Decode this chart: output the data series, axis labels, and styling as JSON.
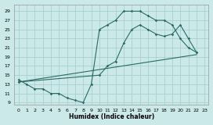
{
  "xlabel": "Humidex (Indice chaleur)",
  "bg_color": "#cce9ea",
  "grid_color": "#aacfcf",
  "line_color": "#2a6b65",
  "xlim": [
    -0.5,
    23.5
  ],
  "ylim": [
    8.5,
    30.5
  ],
  "xticks": [
    0,
    1,
    2,
    3,
    4,
    5,
    6,
    7,
    8,
    9,
    10,
    11,
    12,
    13,
    14,
    15,
    16,
    17,
    18,
    19,
    20,
    21,
    22,
    23
  ],
  "yticks": [
    9,
    11,
    13,
    15,
    17,
    19,
    21,
    23,
    25,
    27,
    29
  ],
  "line1_x": [
    0,
    1,
    2,
    3,
    4,
    5,
    6,
    7,
    8,
    9,
    10,
    11,
    12,
    13,
    14,
    15,
    16,
    17,
    18,
    19,
    20,
    21,
    22
  ],
  "line1_y": [
    14,
    13,
    12,
    12,
    11,
    11,
    10,
    9.5,
    9,
    13,
    25,
    26,
    27,
    29,
    29,
    29,
    28,
    27,
    27,
    26,
    23,
    21,
    20
  ],
  "line2_x": [
    0,
    22
  ],
  "line2_y": [
    13.5,
    19.5
  ],
  "line3_x": [
    0,
    10,
    11,
    12,
    13,
    14,
    15,
    16,
    17,
    18,
    19,
    20,
    21,
    22
  ],
  "line3_y": [
    13.5,
    15,
    17,
    18,
    22,
    25,
    26,
    25,
    24,
    23.5,
    24,
    26,
    23,
    20
  ]
}
